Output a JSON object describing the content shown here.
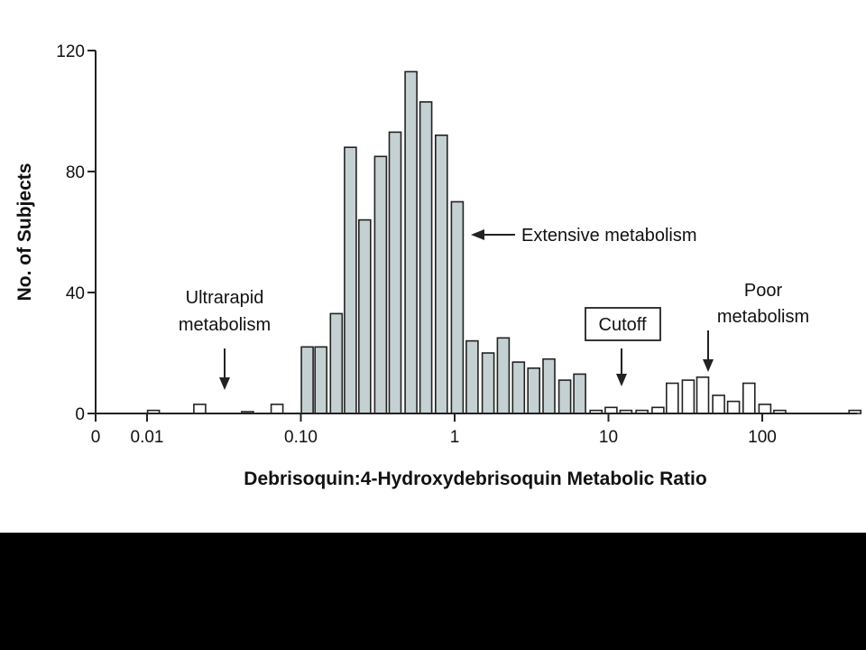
{
  "chart_data": {
    "type": "bar",
    "title": "",
    "xlabel": "Debrisoquin:4-Hydroxydebrisoquin Metabolic Ratio",
    "ylabel": "No. of Subjects",
    "xscale": "log",
    "ylim": [
      0,
      120
    ],
    "y_ticks": [
      "0",
      "40",
      "80",
      "120"
    ],
    "x_ticks": [
      "0",
      "0.01",
      "0.10",
      "1",
      "10",
      "100"
    ],
    "bins": [
      {
        "x": 0.011,
        "y": 1,
        "group": "ultrarapid"
      },
      {
        "x": 0.022,
        "y": 3,
        "group": "ultrarapid"
      },
      {
        "x": 0.045,
        "y": 0.5,
        "group": "ultrarapid"
      },
      {
        "x": 0.07,
        "y": 3,
        "group": "ultrarapid"
      },
      {
        "x": 0.11,
        "y": 22,
        "group": "extensive"
      },
      {
        "x": 0.135,
        "y": 22,
        "group": "extensive"
      },
      {
        "x": 0.17,
        "y": 33,
        "group": "extensive"
      },
      {
        "x": 0.21,
        "y": 88,
        "group": "extensive"
      },
      {
        "x": 0.26,
        "y": 64,
        "group": "extensive"
      },
      {
        "x": 0.33,
        "y": 85,
        "group": "extensive"
      },
      {
        "x": 0.41,
        "y": 93,
        "group": "extensive"
      },
      {
        "x": 0.52,
        "y": 113,
        "group": "extensive"
      },
      {
        "x": 0.65,
        "y": 103,
        "group": "extensive"
      },
      {
        "x": 0.82,
        "y": 92,
        "group": "extensive"
      },
      {
        "x": 1.04,
        "y": 70,
        "group": "extensive"
      },
      {
        "x": 1.3,
        "y": 24,
        "group": "extensive"
      },
      {
        "x": 1.65,
        "y": 20,
        "group": "extensive"
      },
      {
        "x": 2.07,
        "y": 25,
        "group": "extensive"
      },
      {
        "x": 2.6,
        "y": 17,
        "group": "extensive"
      },
      {
        "x": 3.27,
        "y": 15,
        "group": "extensive"
      },
      {
        "x": 4.1,
        "y": 18,
        "group": "extensive"
      },
      {
        "x": 5.2,
        "y": 11,
        "group": "extensive"
      },
      {
        "x": 6.5,
        "y": 13,
        "group": "extensive"
      },
      {
        "x": 8.3,
        "y": 1,
        "group": "poor"
      },
      {
        "x": 10.4,
        "y": 2,
        "group": "poor"
      },
      {
        "x": 13,
        "y": 1,
        "group": "poor"
      },
      {
        "x": 16.5,
        "y": 1,
        "group": "poor"
      },
      {
        "x": 21,
        "y": 2,
        "group": "poor"
      },
      {
        "x": 26,
        "y": 10,
        "group": "poor"
      },
      {
        "x": 33,
        "y": 11,
        "group": "poor"
      },
      {
        "x": 41,
        "y": 12,
        "group": "poor"
      },
      {
        "x": 52,
        "y": 6,
        "group": "poor"
      },
      {
        "x": 65,
        "y": 4,
        "group": "poor"
      },
      {
        "x": 82,
        "y": 10,
        "group": "poor"
      },
      {
        "x": 104,
        "y": 3,
        "group": "poor"
      },
      {
        "x": 130,
        "y": 1,
        "group": "poor"
      },
      {
        "x": 400,
        "y": 1,
        "group": "poor"
      }
    ],
    "annotations": {
      "ultrarapid": [
        "Ultrarapid",
        "metabolism"
      ],
      "extensive": "Extensive metabolism",
      "cutoff": "Cutoff",
      "poor": [
        "Poor",
        "metabolism"
      ]
    },
    "grid": false,
    "colors": {
      "extensive_fill": "#c5d0d3",
      "outline_fill": "#ffffff",
      "stroke": "#222222"
    }
  }
}
